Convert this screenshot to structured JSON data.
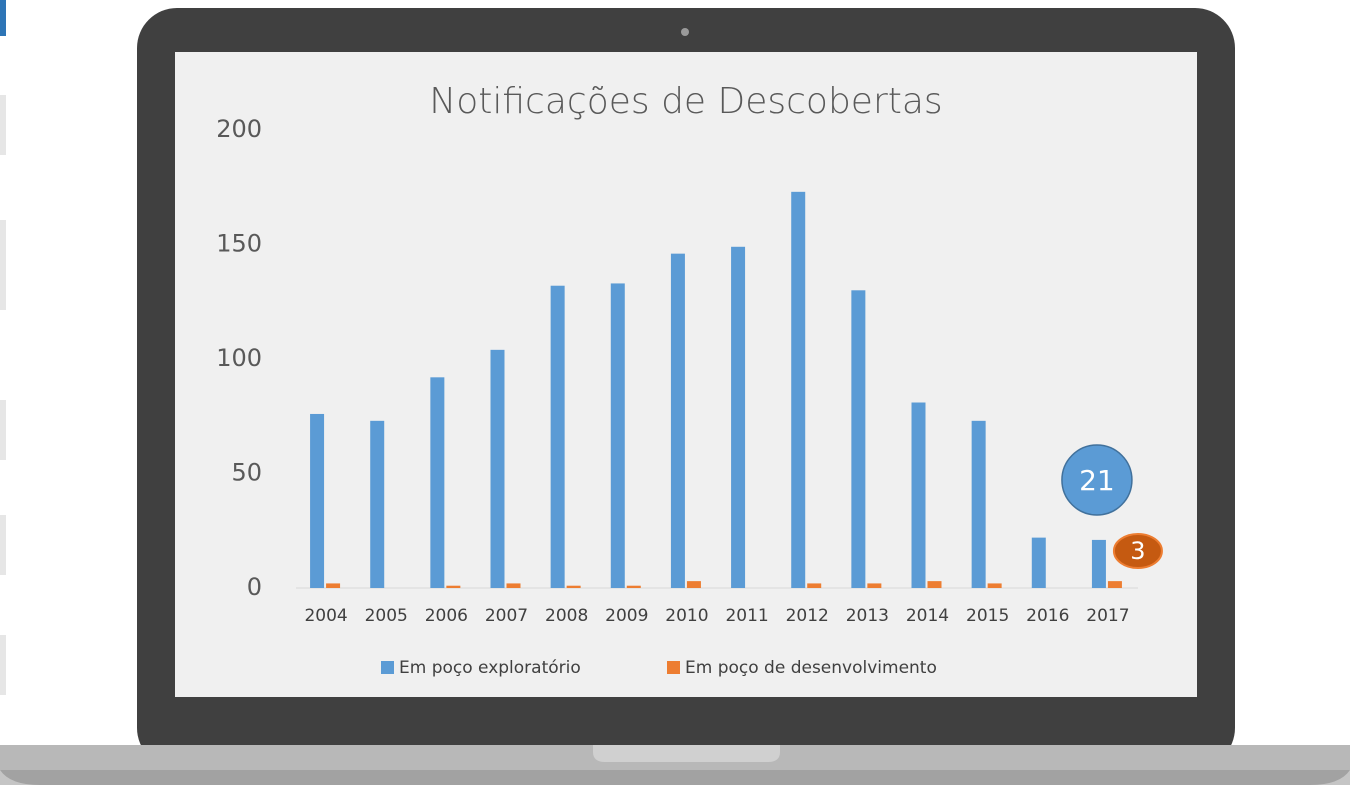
{
  "chart_data": {
    "type": "bar",
    "title": "Notificações de Descobertas",
    "categories": [
      "2004",
      "2005",
      "2006",
      "2007",
      "2008",
      "2009",
      "2010",
      "2011",
      "2012",
      "2013",
      "2014",
      "2015",
      "2016",
      "2017"
    ],
    "series": [
      {
        "name": "Em poço exploratório",
        "color": "#5b9bd5",
        "values": [
          76,
          73,
          92,
          104,
          132,
          133,
          146,
          149,
          173,
          130,
          81,
          73,
          22,
          21
        ]
      },
      {
        "name": "Em poço de desenvolvimento",
        "color": "#ed7d31",
        "values": [
          2,
          0,
          1,
          2,
          1,
          1,
          3,
          0,
          2,
          2,
          3,
          2,
          0,
          3
        ]
      }
    ],
    "ylim": [
      0,
      200
    ],
    "yticks": [
      0,
      50,
      100,
      150,
      200
    ],
    "grid": false,
    "legend": "bottom"
  }
}
